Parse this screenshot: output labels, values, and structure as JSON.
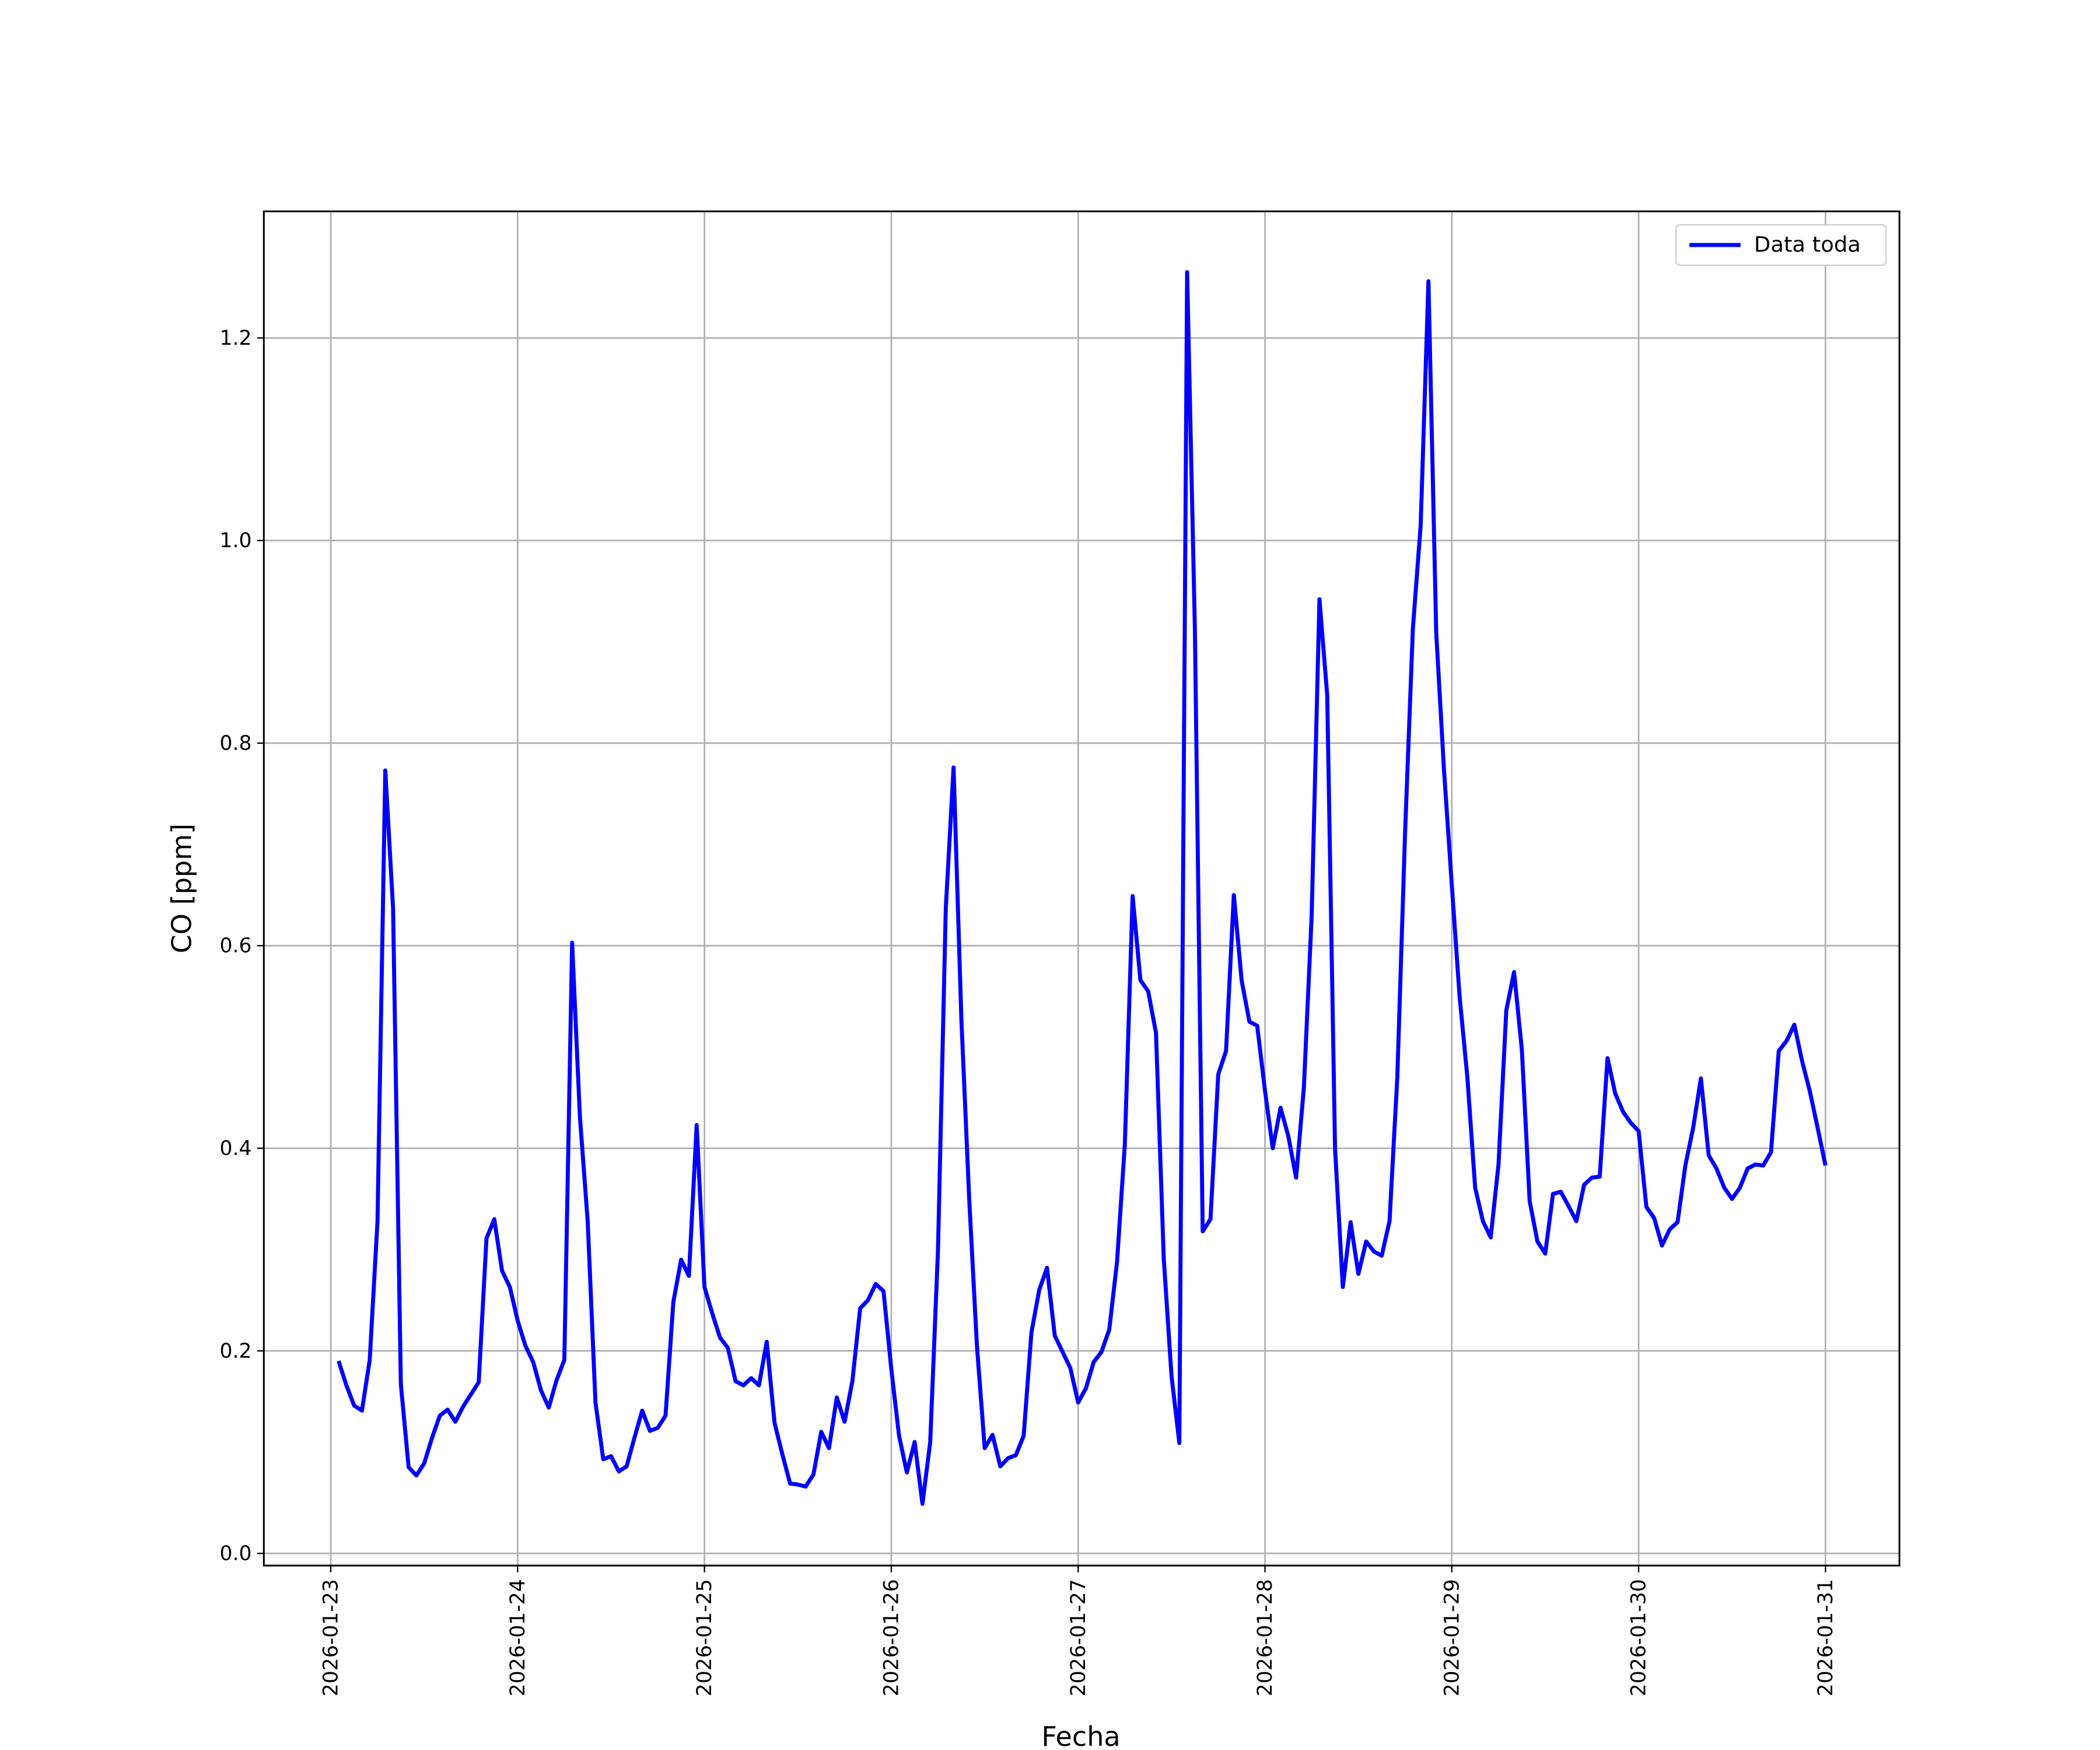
{
  "chart_data": {
    "type": "line",
    "xlabel": "Fecha",
    "ylabel": "CO [ppm]",
    "x": [
      1,
      2,
      3,
      4,
      5,
      6,
      7,
      8,
      9,
      10,
      11,
      12,
      13,
      14,
      15,
      16,
      17,
      18,
      19,
      20,
      21,
      22,
      23,
      24,
      25,
      26,
      27,
      28,
      29,
      30,
      31,
      32,
      33,
      34,
      35,
      36,
      37,
      38,
      39,
      40,
      41,
      42,
      43,
      44,
      45,
      46,
      47,
      48,
      49,
      50,
      51,
      52,
      53,
      54,
      55,
      56,
      57,
      58,
      59,
      60,
      61,
      62,
      63,
      64,
      65,
      66,
      67,
      68,
      69,
      70,
      71,
      72,
      73,
      74,
      75,
      76,
      77,
      78,
      79,
      80,
      81,
      82,
      83,
      84,
      85,
      86,
      87,
      88,
      89,
      90,
      91,
      92,
      93,
      94,
      95,
      96,
      97,
      98,
      99,
      100,
      101,
      102,
      103,
      104,
      105,
      106,
      107,
      108,
      109,
      110,
      111,
      112,
      113,
      114,
      115,
      116,
      117,
      118,
      119,
      120,
      121,
      122,
      123,
      124,
      125,
      126,
      127,
      128,
      129,
      130,
      131,
      132,
      133,
      134,
      135,
      136,
      137,
      138,
      139,
      140,
      141,
      142,
      143,
      144,
      145,
      146,
      147,
      148,
      149,
      150,
      151,
      152,
      153,
      154,
      155,
      156,
      157,
      158,
      159,
      160,
      161,
      162,
      163,
      164,
      165,
      166,
      167,
      168,
      169,
      170,
      171,
      172,
      173,
      174,
      175,
      176,
      177,
      178,
      179,
      180,
      181,
      182,
      183,
      184,
      185,
      186,
      187,
      188,
      189,
      190,
      191,
      192
    ],
    "series": [
      {
        "name": "Data toda",
        "color": "#0000ff",
        "values": [
          0.19,
          0.166,
          0.146,
          0.141,
          0.191,
          0.328,
          0.773,
          0.637,
          0.167,
          0.085,
          0.077,
          0.089,
          0.114,
          0.136,
          0.142,
          0.13,
          0.145,
          0.157,
          0.169,
          0.311,
          0.33,
          0.279,
          0.263,
          0.23,
          0.205,
          0.189,
          0.161,
          0.144,
          0.171,
          0.191,
          0.603,
          0.431,
          0.328,
          0.149,
          0.093,
          0.096,
          0.081,
          0.086,
          0.114,
          0.141,
          0.121,
          0.124,
          0.136,
          0.248,
          0.29,
          0.274,
          0.423,
          0.263,
          0.237,
          0.213,
          0.203,
          0.17,
          0.166,
          0.173,
          0.166,
          0.209,
          0.129,
          0.098,
          0.069,
          0.068,
          0.066,
          0.078,
          0.12,
          0.104,
          0.154,
          0.13,
          0.17,
          0.242,
          0.25,
          0.266,
          0.259,
          0.182,
          0.116,
          0.08,
          0.11,
          0.049,
          0.11,
          0.3,
          0.637,
          0.776,
          0.528,
          0.351,
          0.205,
          0.104,
          0.117,
          0.086,
          0.094,
          0.097,
          0.116,
          0.218,
          0.26,
          0.282,
          0.215,
          0.199,
          0.183,
          0.149,
          0.163,
          0.189,
          0.199,
          0.221,
          0.288,
          0.404,
          0.649,
          0.566,
          0.555,
          0.514,
          0.291,
          0.175,
          0.109,
          1.265,
          0.912,
          0.318,
          0.33,
          0.473,
          0.496,
          0.65,
          0.566,
          0.525,
          0.521,
          0.457,
          0.4,
          0.44,
          0.412,
          0.371,
          0.46,
          0.63,
          0.942,
          0.847,
          0.4,
          0.263,
          0.327,
          0.276,
          0.308,
          0.298,
          0.294,
          0.328,
          0.47,
          0.712,
          0.913,
          1.015,
          1.256,
          0.909,
          0.773,
          0.66,
          0.55,
          0.47,
          0.361,
          0.328,
          0.312,
          0.384,
          0.536,
          0.574,
          0.497,
          0.348,
          0.308,
          0.296,
          0.355,
          0.357,
          0.343,
          0.328,
          0.364,
          0.371,
          0.372,
          0.489,
          0.454,
          0.436,
          0.425,
          0.417,
          0.342,
          0.331,
          0.304,
          0.32,
          0.327,
          0.383,
          0.42,
          0.469,
          0.393,
          0.38,
          0.361,
          0.35,
          0.361,
          0.38,
          0.384,
          0.383,
          0.396,
          0.496,
          0.506,
          0.522,
          0.486,
          0.456,
          0.42,
          0.383
        ]
      }
    ],
    "xlim": [
      -8.6,
      201.5
    ],
    "xticks": [
      {
        "value": 0,
        "label": "2026-01-23"
      },
      {
        "value": 24,
        "label": "2026-01-24"
      },
      {
        "value": 48,
        "label": "2026-01-25"
      },
      {
        "value": 72,
        "label": "2026-01-26"
      },
      {
        "value": 96,
        "label": "2026-01-27"
      },
      {
        "value": 120,
        "label": "2026-01-28"
      },
      {
        "value": 144,
        "label": "2026-01-29"
      },
      {
        "value": 168,
        "label": "2026-01-30"
      },
      {
        "value": 192,
        "label": "2026-01-31"
      }
    ],
    "ylim": [
      -0.012,
      1.325
    ],
    "yticks": [
      {
        "value": 0,
        "label": "0.0"
      },
      0.2,
      0.4,
      0.6,
      0.8,
      {
        "value": 1,
        "label": "1.0"
      },
      1.2
    ],
    "grid": true,
    "legend": "upper right"
  }
}
